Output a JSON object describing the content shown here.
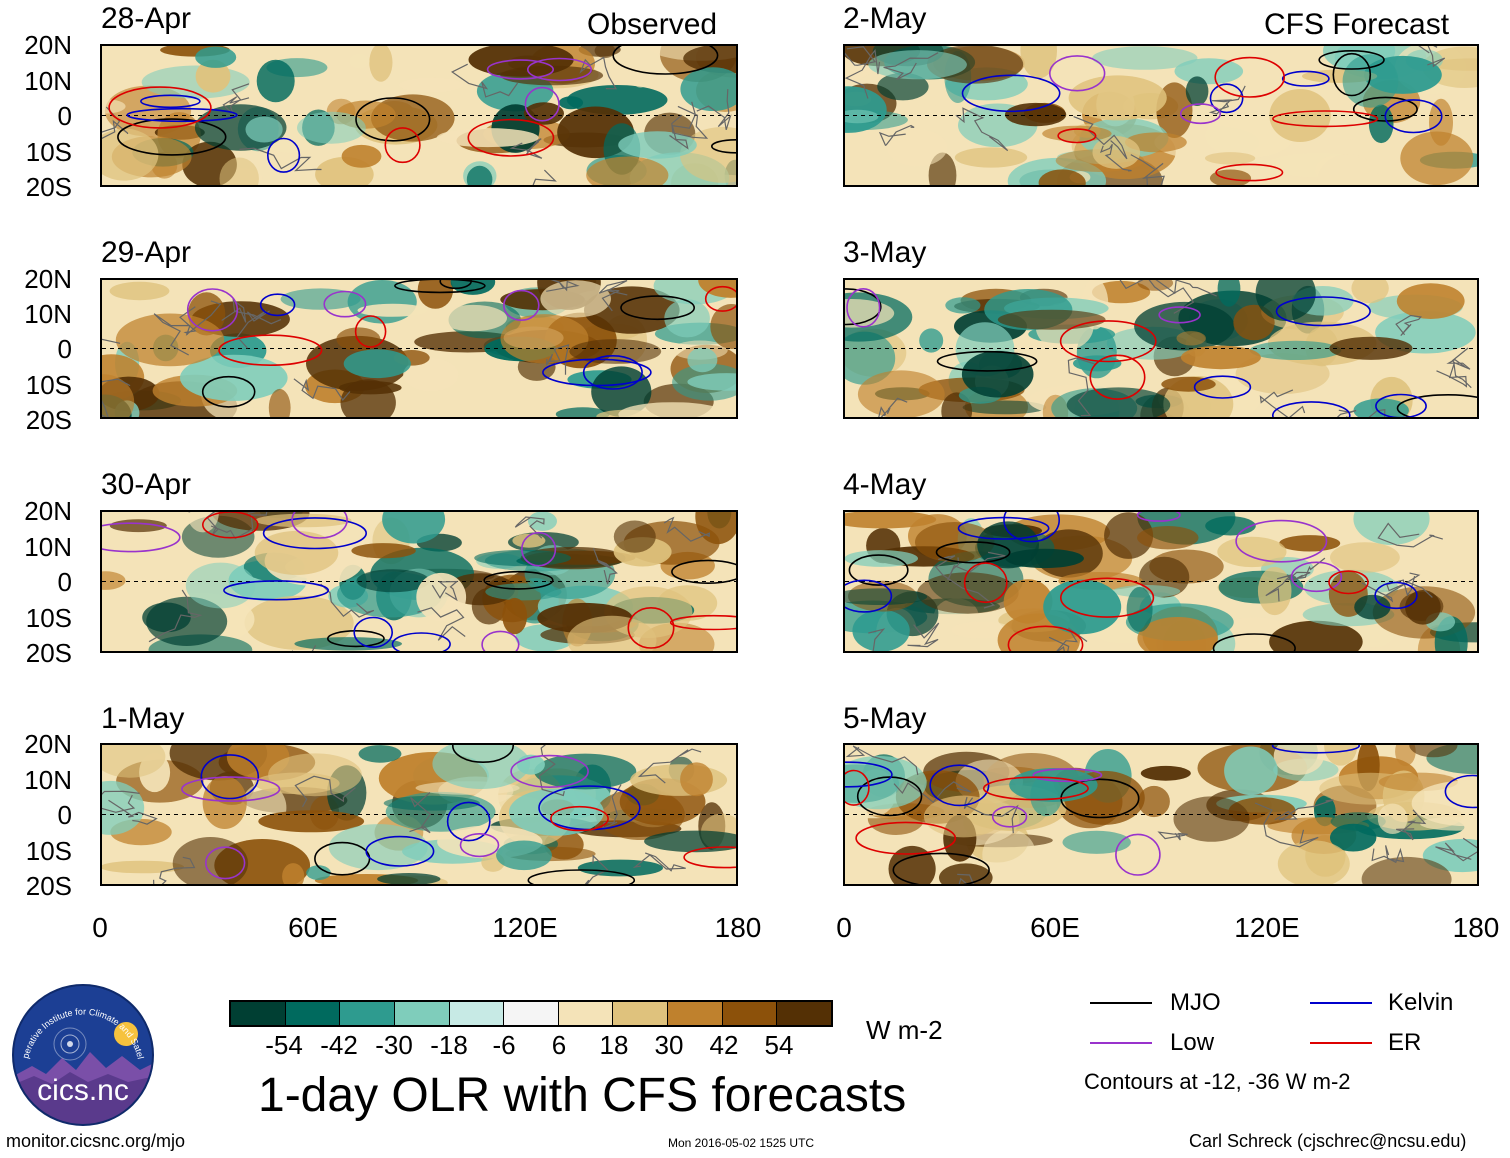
{
  "title": "1-day OLR with CFS forecasts",
  "sources": {
    "observed": "Observed",
    "forecast": "CFS Forecast"
  },
  "chart_data": {
    "type": "heatmap",
    "variable": "OLR anomaly",
    "units": "W m-2",
    "colorbar": {
      "ticks": [
        "-54",
        "-42",
        "-30",
        "-18",
        "-6",
        "6",
        "18",
        "30",
        "42",
        "54"
      ],
      "colors": [
        "#003f33",
        "#006a5e",
        "#2e9b8f",
        "#7fcdbb",
        "#c7eae5",
        "#f5f5f5",
        "#f4e3b8",
        "#dfc27d",
        "#bf812d",
        "#8c510a",
        "#543005"
      ]
    },
    "lat_ticks": [
      "20N",
      "10N",
      "0",
      "10S",
      "20S"
    ],
    "lon_ticks": [
      "0",
      "60E",
      "120E",
      "180"
    ],
    "lat_range": [
      -20,
      20
    ],
    "lon_range": [
      0,
      180
    ],
    "panels": {
      "observed": [
        "28-Apr",
        "29-Apr",
        "30-Apr",
        "1-May"
      ],
      "forecast": [
        "2-May",
        "3-May",
        "4-May",
        "5-May"
      ]
    },
    "contour_legend": [
      {
        "label": "MJO",
        "color": "#000000"
      },
      {
        "label": "Kelvin",
        "color": "#0000cc"
      },
      {
        "label": "Low",
        "color": "#9933cc"
      },
      {
        "label": "ER",
        "color": "#dd0000"
      }
    ],
    "contour_note": "Contours at -12, -36 W m-2"
  },
  "footer": {
    "left": "monitor.cicsnc.org/mjo",
    "center": "Mon 2016-05-02 1525 UTC",
    "right": "Carl Schreck (cjschrec@ncsu.edu)"
  },
  "logo": {
    "text": "cics.nc",
    "arc_text": "Cooperative Institute for Climate and Satellites"
  }
}
